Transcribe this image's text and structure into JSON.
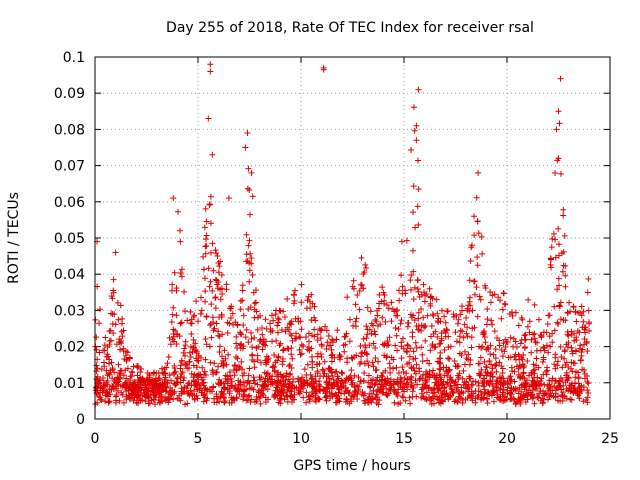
{
  "chart_data": {
    "type": "scatter",
    "title": "Day 255 of 2018, Rate Of TEC Index for receiver rsal",
    "xlabel": "GPS time / hours",
    "ylabel": "ROTI / TECUs",
    "xlim": [
      0,
      25
    ],
    "ylim": [
      0,
      0.1
    ],
    "x_ticks": [
      "0",
      "5",
      "10",
      "15",
      "20",
      "25"
    ],
    "y_ticks": [
      "0",
      "0.01",
      "0.02",
      "0.03",
      "0.04",
      "0.05",
      "0.06",
      "0.07",
      "0.08",
      "0.09",
      "0.1"
    ],
    "grid": true,
    "marker": "plus",
    "color": "#e00000",
    "x_range_data": [
      0,
      24
    ],
    "envelope_hours": [
      0,
      0.3,
      0.6,
      1,
      1.5,
      2,
      2.5,
      3,
      3.5,
      4,
      4.5,
      5,
      5.5,
      6,
      6.5,
      7,
      7.5,
      8,
      8.5,
      9,
      9.5,
      10,
      10.5,
      11,
      11.5,
      12,
      12.5,
      13,
      13.5,
      14,
      14.5,
      15,
      15.5,
      16,
      16.5,
      17,
      17.5,
      18,
      18.5,
      19,
      19.5,
      20,
      20.5,
      21,
      21.5,
      22,
      22.5,
      23,
      23.5,
      24
    ],
    "envelope_rotI": [
      0.04,
      0.035,
      0.022,
      0.045,
      0.022,
      0.015,
      0.013,
      0.013,
      0.015,
      0.06,
      0.03,
      0.035,
      0.072,
      0.045,
      0.035,
      0.025,
      0.078,
      0.03,
      0.03,
      0.03,
      0.036,
      0.04,
      0.035,
      0.03,
      0.022,
      0.03,
      0.038,
      0.048,
      0.03,
      0.04,
      0.03,
      0.048,
      0.09,
      0.04,
      0.035,
      0.03,
      0.03,
      0.032,
      0.068,
      0.037,
      0.035,
      0.035,
      0.03,
      0.035,
      0.03,
      0.03,
      0.094,
      0.035,
      0.03,
      0.04
    ],
    "highlight_points": [
      {
        "x": 5.6,
        "y": 0.098
      },
      {
        "x": 5.6,
        "y": 0.096
      },
      {
        "x": 11.1,
        "y": 0.097
      },
      {
        "x": 11.1,
        "y": 0.0965
      },
      {
        "x": 15.7,
        "y": 0.091
      },
      {
        "x": 22.6,
        "y": 0.094
      },
      {
        "x": 22.5,
        "y": 0.085
      },
      {
        "x": 22.4,
        "y": 0.08
      },
      {
        "x": 15.6,
        "y": 0.081
      },
      {
        "x": 15.6,
        "y": 0.077
      },
      {
        "x": 5.5,
        "y": 0.083
      },
      {
        "x": 7.4,
        "y": 0.079
      },
      {
        "x": 7.3,
        "y": 0.075
      },
      {
        "x": 18.6,
        "y": 0.068
      },
      {
        "x": 5.7,
        "y": 0.073
      },
      {
        "x": 7.6,
        "y": 0.068
      },
      {
        "x": 3.8,
        "y": 0.061
      },
      {
        "x": 6.5,
        "y": 0.061
      },
      {
        "x": 22.5,
        "y": 0.072
      },
      {
        "x": 18.4,
        "y": 0.056
      },
      {
        "x": 0.1,
        "y": 0.049
      },
      {
        "x": 1.0,
        "y": 0.046
      },
      {
        "x": 18.3,
        "y": 0.048
      },
      {
        "x": 14.9,
        "y": 0.049
      }
    ]
  }
}
